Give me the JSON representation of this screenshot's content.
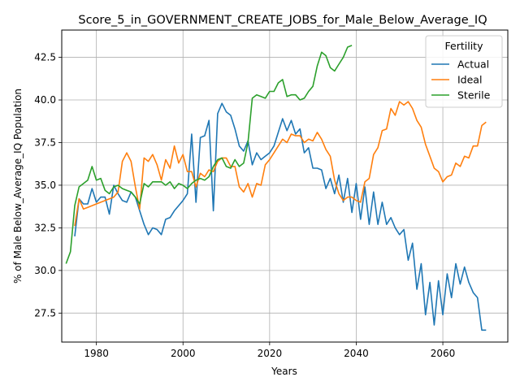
{
  "chart_data": {
    "type": "line",
    "title": "Score_5_in_GOVERNMENT_CREATE_JOBS_for_Male_Below_Average_IQ",
    "xlabel": "Years",
    "ylabel": "% of Male Below_Average_IQ Population",
    "xlim": [
      1972,
      2075
    ],
    "ylim": [
      25.8,
      44.1
    ],
    "xticks": [
      1980,
      2000,
      2020,
      2040,
      2060
    ],
    "yticks": [
      27.5,
      30.0,
      32.5,
      35.0,
      37.5,
      40.0,
      42.5
    ],
    "ytick_labels": [
      "27.5",
      "30.0",
      "32.5",
      "35.0",
      "37.5",
      "40.0",
      "42.5"
    ],
    "grid": true,
    "legend": {
      "title": "Fertility",
      "placement": "top-right"
    },
    "series": [
      {
        "name": "Actual",
        "color": "#1f77b4",
        "x": [
          1975,
          1976,
          1977,
          1978,
          1979,
          1980,
          1981,
          1982,
          1983,
          1984,
          1985,
          1986,
          1987,
          1988,
          1989,
          1990,
          1991,
          1992,
          1993,
          1994,
          1995,
          1996,
          1997,
          1998,
          1999,
          2000,
          2001,
          2002,
          2003,
          2004,
          2005,
          2006,
          2007,
          2008,
          2009,
          2010,
          2011,
          2012,
          2013,
          2014,
          2015,
          2016,
          2017,
          2018,
          2019,
          2020,
          2021,
          2022,
          2023,
          2024,
          2025,
          2026,
          2027,
          2028,
          2029,
          2030,
          2031,
          2032,
          2033,
          2034,
          2035,
          2036,
          2037,
          2038,
          2039,
          2040,
          2041,
          2042,
          2043,
          2044,
          2045,
          2046,
          2047,
          2048,
          2049,
          2050,
          2051,
          2052,
          2053,
          2054,
          2055,
          2056,
          2057,
          2058,
          2059,
          2060,
          2061,
          2062,
          2063,
          2064,
          2065,
          2066,
          2067,
          2068,
          2069,
          2070
        ],
        "y": [
          32.0,
          34.2,
          33.9,
          33.9,
          34.8,
          34.0,
          34.3,
          34.3,
          33.3,
          35.0,
          34.5,
          34.1,
          34.0,
          34.6,
          34.3,
          33.5,
          32.7,
          32.1,
          32.5,
          32.4,
          32.1,
          33.0,
          33.1,
          33.5,
          33.8,
          34.1,
          34.5,
          38.0,
          34.0,
          37.8,
          37.9,
          38.8,
          33.5,
          39.2,
          39.8,
          39.3,
          39.1,
          38.3,
          37.3,
          37.0,
          37.6,
          36.2,
          36.9,
          36.5,
          36.7,
          36.9,
          37.3,
          38.1,
          38.9,
          38.2,
          38.8,
          38.0,
          38.3,
          36.9,
          37.2,
          36.0,
          36.0,
          35.9,
          34.8,
          35.4,
          34.5,
          35.6,
          34.0,
          35.4,
          33.4,
          35.1,
          33.0,
          34.9,
          32.7,
          34.6,
          32.7,
          34.0,
          32.7,
          33.1,
          32.5,
          32.1,
          32.4,
          30.6,
          31.6,
          28.9,
          30.4,
          27.4,
          29.3,
          26.8,
          29.4,
          27.4,
          29.8,
          28.4,
          30.4,
          29.2,
          30.2,
          29.3,
          28.7,
          28.4,
          26.5,
          26.5
        ]
      },
      {
        "name": "Ideal",
        "color": "#ff7f0e",
        "x": [
          1975,
          1976,
          1977,
          1978,
          1979,
          1980,
          1981,
          1982,
          1983,
          1984,
          1985,
          1986,
          1987,
          1988,
          1989,
          1990,
          1991,
          1992,
          1993,
          1994,
          1995,
          1996,
          1997,
          1998,
          1999,
          2000,
          2001,
          2002,
          2003,
          2004,
          2005,
          2006,
          2007,
          2008,
          2009,
          2010,
          2011,
          2012,
          2013,
          2014,
          2015,
          2016,
          2017,
          2018,
          2019,
          2020,
          2021,
          2022,
          2023,
          2024,
          2025,
          2026,
          2027,
          2028,
          2029,
          2030,
          2031,
          2032,
          2033,
          2034,
          2035,
          2036,
          2037,
          2038,
          2039,
          2040,
          2041,
          2042,
          2043,
          2044,
          2045,
          2046,
          2047,
          2048,
          2049,
          2050,
          2051,
          2052,
          2053,
          2054,
          2055,
          2056,
          2057,
          2058,
          2059,
          2060,
          2061,
          2062,
          2063,
          2064,
          2065,
          2066,
          2067,
          2068,
          2069,
          2070
        ],
        "y": [
          32.6,
          34.2,
          33.6,
          33.7,
          33.8,
          33.9,
          34.0,
          34.1,
          34.2,
          34.3,
          34.6,
          36.4,
          36.9,
          36.4,
          34.9,
          33.6,
          36.6,
          36.4,
          36.8,
          36.2,
          35.3,
          36.5,
          36.0,
          37.3,
          36.3,
          36.8,
          35.8,
          35.8,
          34.9,
          35.7,
          35.5,
          35.9,
          35.8,
          36.4,
          36.6,
          36.6,
          36.1,
          36.1,
          34.9,
          34.6,
          35.1,
          34.3,
          35.1,
          35.0,
          36.2,
          36.5,
          36.9,
          37.3,
          37.7,
          37.5,
          38.0,
          37.9,
          37.9,
          37.5,
          37.7,
          37.6,
          38.1,
          37.7,
          37.1,
          36.7,
          35.3,
          34.5,
          34.1,
          34.3,
          34.3,
          34.1,
          34.0,
          35.2,
          35.4,
          36.8,
          37.2,
          38.2,
          38.3,
          39.5,
          39.1,
          39.9,
          39.7,
          39.9,
          39.5,
          38.8,
          38.4,
          37.4,
          36.7,
          36.0,
          35.8,
          35.2,
          35.5,
          35.6,
          36.3,
          36.1,
          36.7,
          36.6,
          37.3,
          37.3,
          38.5,
          38.7
        ]
      },
      {
        "name": "Sterile",
        "color": "#2ca02c",
        "x": [
          1973,
          1974,
          1975,
          1976,
          1977,
          1978,
          1979,
          1980,
          1981,
          1982,
          1983,
          1984,
          1985,
          1986,
          1987,
          1988,
          1989,
          1990,
          1991,
          1992,
          1993,
          1994,
          1995,
          1996,
          1997,
          1998,
          1999,
          2000,
          2001,
          2002,
          2003,
          2004,
          2005,
          2006,
          2007,
          2008,
          2009,
          2010,
          2011,
          2012,
          2013,
          2014,
          2015,
          2016,
          2017,
          2018,
          2019,
          2020,
          2021,
          2022,
          2023,
          2024,
          2025,
          2026,
          2027,
          2028,
          2029,
          2030,
          2031,
          2032,
          2033,
          2034,
          2035,
          2036,
          2037,
          2038,
          2039
        ],
        "y": [
          30.4,
          31.1,
          33.8,
          34.9,
          35.1,
          35.3,
          36.1,
          35.3,
          35.4,
          34.7,
          34.5,
          34.9,
          35.0,
          34.8,
          34.7,
          34.6,
          34.3,
          33.9,
          35.1,
          34.9,
          35.2,
          35.2,
          35.2,
          35.0,
          35.2,
          34.8,
          35.1,
          35.0,
          34.8,
          35.1,
          35.3,
          35.4,
          35.3,
          35.5,
          36.1,
          36.5,
          36.6,
          36.1,
          36.0,
          36.5,
          36.1,
          36.3,
          37.5,
          40.1,
          40.3,
          40.2,
          40.1,
          40.5,
          40.5,
          41.0,
          41.2,
          40.2,
          40.3,
          40.3,
          40.0,
          40.1,
          40.5,
          40.8,
          42.0,
          42.8,
          42.6,
          41.9,
          41.7,
          42.1,
          42.5,
          43.1,
          43.2
        ]
      }
    ]
  }
}
